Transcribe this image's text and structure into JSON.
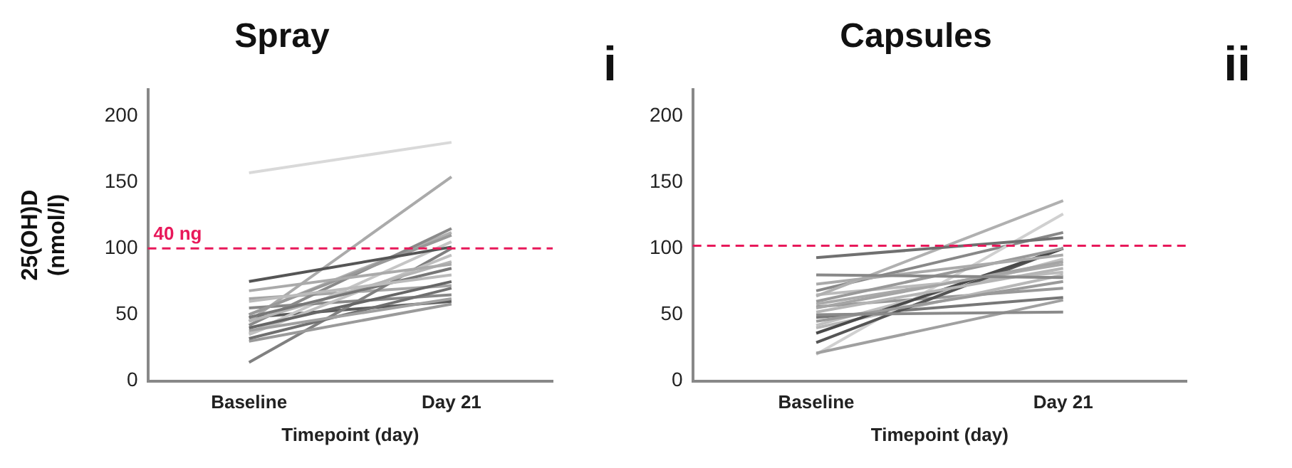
{
  "chart_data": [
    {
      "type": "line",
      "title": "Spray",
      "xlabel": "Timepoint (day)",
      "ylabel": "25(OH)D\n(nmol/l)",
      "categories": [
        "Baseline",
        "Day 21"
      ],
      "ylim": [
        0,
        220
      ],
      "yticks": [
        0,
        50,
        100,
        150,
        200
      ],
      "grid": false,
      "legend": false,
      "marker": "none",
      "annotations": [
        "i"
      ],
      "ref_lines": [
        {
          "axis": "y",
          "value": 100,
          "label": "40 ng",
          "color": "#e8185a",
          "line_style": "dashed"
        }
      ],
      "series": [
        {
          "color": "#d9d9d9",
          "values": [
            157,
            180
          ]
        },
        {
          "color": "#555555",
          "values": [
            75,
            101
          ]
        },
        {
          "color": "#aaaaaa",
          "values": [
            68,
            88
          ]
        },
        {
          "color": "#bbbbbb",
          "values": [
            60,
            80
          ]
        },
        {
          "color": "#999999",
          "values": [
            50,
            110
          ]
        },
        {
          "color": "#777777",
          "values": [
            48,
            85
          ]
        },
        {
          "color": "#b5b5b5",
          "values": [
            45,
            90
          ]
        },
        {
          "color": "#8a8a8a",
          "values": [
            42,
            115
          ]
        },
        {
          "color": "#666666",
          "values": [
            40,
            75
          ]
        },
        {
          "color": "#a0a0a0",
          "values": [
            38,
            62
          ]
        },
        {
          "color": "#c0c0c0",
          "values": [
            35,
            95
          ]
        },
        {
          "color": "#707070",
          "values": [
            32,
            70
          ]
        },
        {
          "color": "#9a9a9a",
          "values": [
            30,
            58
          ]
        },
        {
          "color": "#808080",
          "values": [
            14,
            100
          ]
        },
        {
          "color": "#aaaaaa",
          "values": [
            45,
            154
          ]
        },
        {
          "color": "#888888",
          "values": [
            55,
            65
          ]
        },
        {
          "color": "#b0b0b0",
          "values": [
            50,
            112
          ]
        },
        {
          "color": "#c5c5c5",
          "values": [
            36,
            105
          ]
        },
        {
          "color": "#a5a5a5",
          "values": [
            62,
            72
          ]
        },
        {
          "color": "#5a5a5a",
          "values": [
            48,
            60
          ]
        }
      ]
    },
    {
      "type": "line",
      "title": "Capsules",
      "xlabel": "Timepoint (day)",
      "categories": [
        "Baseline",
        "Day 21"
      ],
      "ylim": [
        0,
        220
      ],
      "yticks": [
        0,
        50,
        100,
        150,
        200
      ],
      "grid": false,
      "legend": false,
      "marker": "none",
      "annotations": [
        "ii"
      ],
      "ref_lines": [
        {
          "axis": "y",
          "value": 102,
          "color": "#e8185a",
          "line_style": "dashed"
        }
      ],
      "series": [
        {
          "color": "#707070",
          "values": [
            93,
            108
          ]
        },
        {
          "color": "#888888",
          "values": [
            80,
            78
          ]
        },
        {
          "color": "#aaaaaa",
          "values": [
            73,
            95
          ]
        },
        {
          "color": "#b0b0b0",
          "values": [
            64,
            136
          ]
        },
        {
          "color": "#999999",
          "values": [
            60,
            100
          ]
        },
        {
          "color": "#a5a5a5",
          "values": [
            55,
            90
          ]
        },
        {
          "color": "#b5b5b5",
          "values": [
            52,
            85
          ]
        },
        {
          "color": "#8a8a8a",
          "values": [
            50,
            52
          ]
        },
        {
          "color": "#9a9a9a",
          "values": [
            45,
            75
          ]
        },
        {
          "color": "#4a4a4a",
          "values": [
            36,
            100
          ]
        },
        {
          "color": "#555555",
          "values": [
            29,
            100
          ]
        },
        {
          "color": "#a0a0a0",
          "values": [
            21,
            61
          ]
        },
        {
          "color": "#d0d0d0",
          "values": [
            20,
            126
          ]
        },
        {
          "color": "#bbbbbb",
          "values": [
            65,
            82
          ]
        },
        {
          "color": "#aaaaaa",
          "values": [
            58,
            88
          ]
        },
        {
          "color": "#777777",
          "values": [
            48,
            63
          ]
        },
        {
          "color": "#c0c0c0",
          "values": [
            42,
            92
          ]
        },
        {
          "color": "#888888",
          "values": [
            68,
            112
          ]
        },
        {
          "color": "#b8b8b8",
          "values": [
            40,
            80
          ]
        },
        {
          "color": "#999999",
          "values": [
            56,
            70
          ]
        }
      ]
    }
  ]
}
